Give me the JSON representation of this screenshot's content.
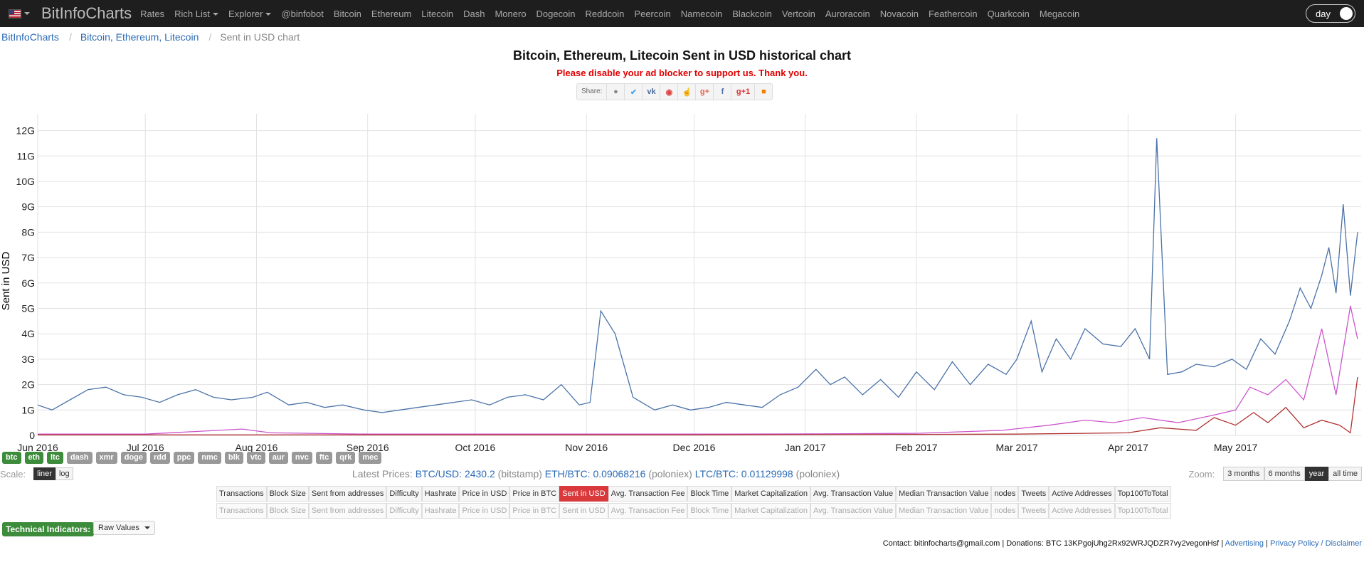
{
  "navbar": {
    "flag_icon": "us-flag-icon",
    "brand": "BitInfoCharts",
    "items": [
      "Rates",
      "Rich List",
      "Explorer",
      "@binfobot",
      "Bitcoin",
      "Ethereum",
      "Litecoin",
      "Dash",
      "Monero",
      "Dogecoin",
      "Reddcoin",
      "Peercoin",
      "Namecoin",
      "Blackcoin",
      "Vertcoin",
      "Auroracoin",
      "Novacoin",
      "Feathercoin",
      "Quarkcoin",
      "Megacoin"
    ],
    "theme_toggle": "day"
  },
  "breadcrumb": {
    "home": "BitInfoCharts",
    "section": "Bitcoin, Ethereum, Litecoin",
    "current": "Sent in USD chart"
  },
  "page": {
    "title": "Bitcoin, Ethereum, Litecoin Sent in USD historical chart",
    "ad_notice": "Please disable your ad blocker to support us. Thank you.",
    "share_label": "Share:",
    "share_icons": [
      "reddit-icon",
      "twitter-icon",
      "vk-icon",
      "weibo-icon",
      "like-icon",
      "googleplus-icon",
      "facebook-icon",
      "googleplus-one-icon",
      "blogger-icon"
    ]
  },
  "chart_data": {
    "type": "line",
    "title": "",
    "xlabel": "",
    "ylabel": "Sent in USD",
    "ylim": [
      0,
      12.8
    ],
    "y_unit": "G (billions USD)",
    "y_tick_labels": [
      "0",
      "1G",
      "2G",
      "3G",
      "4G",
      "5G",
      "6G",
      "7G",
      "8G",
      "9G",
      "10G",
      "11G",
      "12G"
    ],
    "x_tick_labels": [
      "Jun 2016",
      "Jul 2016",
      "Aug 2016",
      "Sep 2016",
      "Oct 2016",
      "Nov 2016",
      "Dec 2016",
      "Jan 2017",
      "Feb 2017",
      "Mar 2017",
      "Apr 2017",
      "May 2017"
    ],
    "x_range": [
      "2016-06-01",
      "2017-06-05"
    ],
    "grid": true,
    "series": [
      {
        "color": "#4a72a8",
        "dates": [
          "2016-06-01",
          "2016-06-05",
          "2016-06-10",
          "2016-06-15",
          "2016-06-20",
          "2016-06-25",
          "2016-06-30",
          "2016-07-05",
          "2016-07-10",
          "2016-07-15",
          "2016-07-20",
          "2016-07-25",
          "2016-07-31",
          "2016-08-04",
          "2016-08-10",
          "2016-08-15",
          "2016-08-20",
          "2016-08-25",
          "2016-08-31",
          "2016-09-05",
          "2016-09-10",
          "2016-09-15",
          "2016-09-20",
          "2016-09-25",
          "2016-09-30",
          "2016-10-05",
          "2016-10-10",
          "2016-10-15",
          "2016-10-20",
          "2016-10-25",
          "2016-10-30",
          "2016-11-02",
          "2016-11-05",
          "2016-11-09",
          "2016-11-14",
          "2016-11-20",
          "2016-11-25",
          "2016-11-30",
          "2016-12-05",
          "2016-12-10",
          "2016-12-15",
          "2016-12-20",
          "2016-12-25",
          "2016-12-30",
          "2017-01-04",
          "2017-01-08",
          "2017-01-12",
          "2017-01-17",
          "2017-01-22",
          "2017-01-27",
          "2017-02-01",
          "2017-02-06",
          "2017-02-11",
          "2017-02-16",
          "2017-02-21",
          "2017-02-26",
          "2017-03-01",
          "2017-03-05",
          "2017-03-08",
          "2017-03-12",
          "2017-03-16",
          "2017-03-20",
          "2017-03-25",
          "2017-03-30",
          "2017-04-03",
          "2017-04-07",
          "2017-04-09",
          "2017-04-12",
          "2017-04-16",
          "2017-04-20",
          "2017-04-25",
          "2017-04-30",
          "2017-05-04",
          "2017-05-08",
          "2017-05-12",
          "2017-05-16",
          "2017-05-19",
          "2017-05-22",
          "2017-05-25",
          "2017-05-27",
          "2017-05-29",
          "2017-05-31",
          "2017-06-02",
          "2017-06-04"
        ],
        "values": [
          1.2,
          1.0,
          1.4,
          1.8,
          1.9,
          1.6,
          1.5,
          1.3,
          1.6,
          1.8,
          1.5,
          1.4,
          1.5,
          1.7,
          1.2,
          1.3,
          1.1,
          1.2,
          1.0,
          0.9,
          1.0,
          1.1,
          1.2,
          1.3,
          1.4,
          1.2,
          1.5,
          1.6,
          1.4,
          2.0,
          1.2,
          1.3,
          4.9,
          4.0,
          1.5,
          1.0,
          1.2,
          1.0,
          1.1,
          1.3,
          1.2,
          1.1,
          1.6,
          1.9,
          2.6,
          2.0,
          2.3,
          1.6,
          2.2,
          1.5,
          2.5,
          1.8,
          2.9,
          2.0,
          2.8,
          2.4,
          3.0,
          4.5,
          2.5,
          3.8,
          3.0,
          4.2,
          3.6,
          3.5,
          4.2,
          3.0,
          11.7,
          2.4,
          2.5,
          2.8,
          2.7,
          3.0,
          2.6,
          3.8,
          3.2,
          4.5,
          5.8,
          5.0,
          6.3,
          7.4,
          5.6,
          9.1,
          5.5,
          8.0
        ]
      },
      {
        "color": "#cc55cc",
        "dates": [
          "2016-06-01",
          "2016-07-01",
          "2016-07-28",
          "2016-08-05",
          "2016-09-01",
          "2016-10-01",
          "2016-11-01",
          "2016-12-01",
          "2017-01-01",
          "2017-02-01",
          "2017-02-25",
          "2017-03-10",
          "2017-03-20",
          "2017-03-28",
          "2017-04-05",
          "2017-04-15",
          "2017-04-25",
          "2017-05-01",
          "2017-05-05",
          "2017-05-10",
          "2017-05-15",
          "2017-05-20",
          "2017-05-25",
          "2017-05-29",
          "2017-06-02",
          "2017-06-04"
        ],
        "values": [
          0.05,
          0.05,
          0.25,
          0.1,
          0.05,
          0.05,
          0.05,
          0.05,
          0.06,
          0.08,
          0.2,
          0.4,
          0.6,
          0.5,
          0.7,
          0.5,
          0.8,
          1.0,
          1.9,
          1.6,
          2.2,
          1.4,
          4.2,
          1.6,
          5.1,
          3.8
        ]
      },
      {
        "color": "#b03030",
        "dates": [
          "2016-06-01",
          "2016-07-01",
          "2016-08-01",
          "2016-09-01",
          "2016-10-01",
          "2016-11-01",
          "2016-12-01",
          "2017-01-01",
          "2017-02-01",
          "2017-03-01",
          "2017-04-01",
          "2017-04-10",
          "2017-04-20",
          "2017-04-25",
          "2017-05-01",
          "2017-05-06",
          "2017-05-10",
          "2017-05-15",
          "2017-05-20",
          "2017-05-25",
          "2017-05-30",
          "2017-06-02",
          "2017-06-04"
        ],
        "values": [
          0.02,
          0.02,
          0.02,
          0.02,
          0.02,
          0.02,
          0.02,
          0.03,
          0.04,
          0.05,
          0.1,
          0.3,
          0.2,
          0.7,
          0.4,
          0.9,
          0.5,
          1.1,
          0.3,
          0.6,
          0.4,
          0.1,
          2.3
        ]
      }
    ]
  },
  "coins": [
    {
      "label": "btc",
      "active": true
    },
    {
      "label": "eth",
      "active": true
    },
    {
      "label": "ltc",
      "active": true
    },
    {
      "label": "dash",
      "active": false
    },
    {
      "label": "xmr",
      "active": false
    },
    {
      "label": "doge",
      "active": false
    },
    {
      "label": "rdd",
      "active": false
    },
    {
      "label": "ppc",
      "active": false
    },
    {
      "label": "nmc",
      "active": false
    },
    {
      "label": "blk",
      "active": false
    },
    {
      "label": "vtc",
      "active": false
    },
    {
      "label": "aur",
      "active": false
    },
    {
      "label": "nvc",
      "active": false
    },
    {
      "label": "ftc",
      "active": false
    },
    {
      "label": "qrk",
      "active": false
    },
    {
      "label": "mec",
      "active": false
    }
  ],
  "scale": {
    "label": "Scale:",
    "liner": "liner",
    "log": "log"
  },
  "prices": {
    "label": "Latest Prices:",
    "btc_pair": "BTC/USD:",
    "btc_value": "2430.2",
    "btc_src": "(bitstamp)",
    "eth_pair": "ETH/BTC:",
    "eth_value": "0.09068216",
    "eth_src": "(poloniex)",
    "ltc_pair": "LTC/BTC:",
    "ltc_value": "0.01129998",
    "ltc_src": "(poloniex)"
  },
  "zoom": {
    "label": "Zoom:",
    "options": [
      "3 months",
      "6 months",
      "year",
      "all time"
    ],
    "selected": "year"
  },
  "metric_tabs": [
    "Transactions",
    "Block Size",
    "Sent from addresses",
    "Difficulty",
    "Hashrate",
    "Price in USD",
    "Price in BTC",
    "Sent in USD",
    "Avg. Transaction Fee",
    "Block Time",
    "Market Capitalization",
    "Avg. Transaction Value",
    "Median Transaction Value",
    "nodes",
    "Tweets",
    "Active Addresses",
    "Top100ToTotal"
  ],
  "metric_selected": "Sent in USD",
  "tech": {
    "label": "Technical Indicators:",
    "select_value": "Raw Values"
  },
  "footer": {
    "contact": "Contact: bitinfocharts@gmail.com | Donations: BTC 13KPgojUhg2Rx92WRJQDZR7vy2vegonHsf",
    "sep1": "|",
    "advertising": "Advertising",
    "sep2": "|",
    "privacy": "Privacy Policy / Disclaimer"
  }
}
